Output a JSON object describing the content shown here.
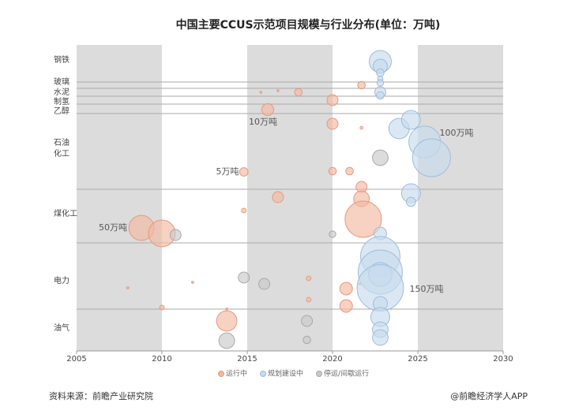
{
  "chart_data": {
    "type": "bubble",
    "title": "中国主要CCUS示范项目规模与行业分布(单位：万吨)",
    "categories": [
      "钢铁",
      "玻璃",
      "水泥",
      "制氢",
      "乙醇",
      "石油\n化工",
      "煤化工",
      "电力",
      "油气"
    ],
    "xlim": [
      2005,
      2030
    ],
    "xticks": [
      2005,
      2010,
      2015,
      2020,
      2025,
      2030
    ],
    "series": [
      {
        "name": "运行中",
        "color": "#f2b9a1",
        "x": [
          2021.7,
          2018,
          2015.8,
          2016.8,
          2020,
          2016.2,
          2020,
          2021.7,
          2020,
          2021,
          2014.8,
          2021.7,
          2021.7,
          2021.8,
          2016.8,
          2014.8,
          2008.8,
          2010,
          2018.6,
          2018.6,
          2020.8,
          2020.8,
          2008,
          2011.8,
          2021.6,
          2010,
          2013.8,
          2013.8
        ],
        "sizes": [
          4,
          4,
          0.3,
          0.3,
          8.5,
          10,
          8.5,
          0.6,
          4,
          4,
          5,
          8.5,
          17,
          92,
          8.5,
          1.5,
          44,
          50,
          1.5,
          1.5,
          11,
          11,
          0.3,
          0.3,
          0.3,
          1.5,
          0.3,
          29
        ]
      },
      {
        "name": "规划建设中",
        "color": "#c7dbee",
        "x": [
          2022.8,
          2022.8,
          2022.8,
          2022.8,
          2022.8,
          2022.8,
          2022.8,
          2023.9,
          2024.6,
          2025.4,
          2025.8,
          2024.6,
          2024.6,
          2022.8,
          2022.8,
          2022.8,
          2022.8,
          2022.8,
          2022.8,
          2022.8,
          2022.8,
          2022.8
        ],
        "sizes": [
          34,
          14,
          4,
          2,
          3,
          8.5,
          4,
          29,
          25,
          70,
          100,
          25,
          6,
          11,
          108,
          136,
          39,
          150,
          14,
          25,
          17,
          17
        ]
      },
      {
        "name": "停运/间歇运行",
        "color": "#c9c9c9",
        "x": [
          2022.8,
          2010.8,
          2020,
          2014.8,
          2016,
          2018.5,
          2018.5,
          2013.8
        ],
        "sizes": [
          17,
          8.5,
          3,
          8.5,
          8.5,
          8.5,
          4,
          17
        ]
      }
    ],
    "annotations": [
      "10万吨",
      "100万吨",
      "5万吨",
      "50万吨",
      "150万吨"
    ],
    "source": "资料来源：前瞻产业研究院",
    "credit": "@前瞻经济学人APP"
  }
}
